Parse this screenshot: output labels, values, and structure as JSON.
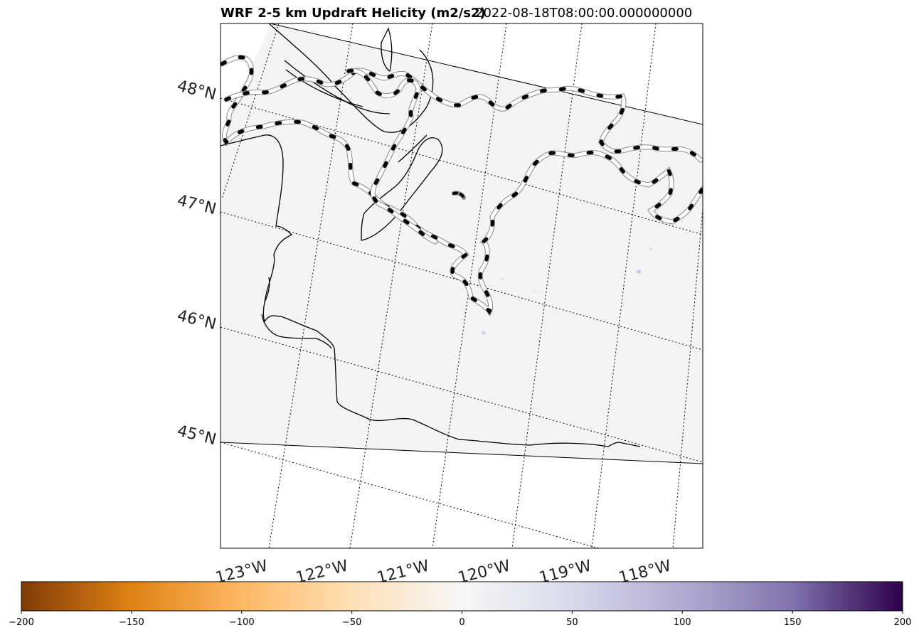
{
  "title": {
    "left": "WRF 2-5 km Updraft Helicity (m2/s2)",
    "right": "2022-08-18T08:00:00.000000000"
  },
  "map": {
    "latitude_labels": [
      "48°N",
      "47°N",
      "46°N",
      "45°N"
    ],
    "longitude_labels": [
      "123°W",
      "122°W",
      "121°W",
      "120°W",
      "119°W",
      "118°W"
    ],
    "field_color": "#f4f4f4",
    "gridline_style": "dotted",
    "contour_style": "dashed-black"
  },
  "colorbar": {
    "colormap": "PuOr",
    "min": -200,
    "max": 200,
    "tick_labels": [
      "−200",
      "−150",
      "−100",
      "−50",
      "0",
      "50",
      "100",
      "150",
      "200"
    ],
    "stops": [
      "#7f3b08",
      "#e08214",
      "#fdb863",
      "#fee0b6",
      "#f7f7f7",
      "#d8daeb",
      "#b2abd2",
      "#8073ac",
      "#2d004b"
    ]
  }
}
